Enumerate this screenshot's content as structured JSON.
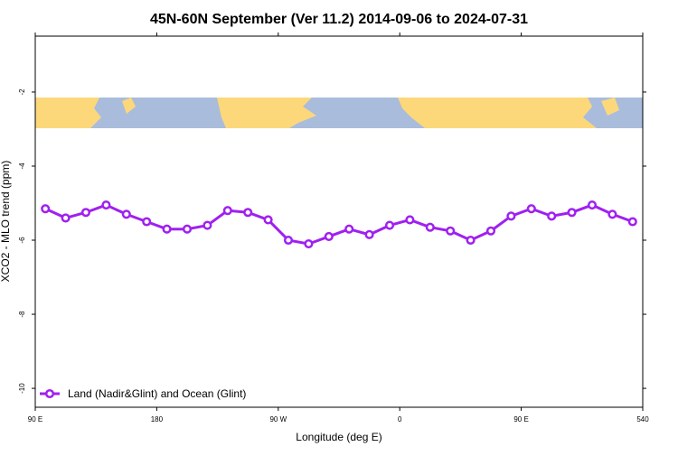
{
  "chart_data": {
    "type": "line",
    "title": "45N-60N September (Ver 11.2)   2014-09-06 to 2024-07-31",
    "x_label": "Longitude (deg E)",
    "y_label": "XCO2 - MLO trend (ppm)",
    "x": [
      97.5,
      112.5,
      127.5,
      142.5,
      157.5,
      172.5,
      187.5,
      202.5,
      217.5,
      232.5,
      247.5,
      262.5,
      277.5,
      292.5,
      307.5,
      322.5,
      337.5,
      352.5,
      367.5,
      382.5,
      397.5,
      412.5,
      427.5,
      442.5,
      457.5,
      472.5,
      487.5,
      502.5,
      517.5,
      532.5
    ],
    "series": [
      {
        "name": "Land (Nadir&Glint) and Ocean (Glint)",
        "color": "#a020f0",
        "values": [
          -5.15,
          -5.4,
          -5.25,
          -5.05,
          -5.3,
          -5.5,
          -5.7,
          -5.7,
          -5.6,
          -5.2,
          -5.25,
          -5.45,
          -6.0,
          -6.1,
          -5.9,
          -5.7,
          -5.85,
          -5.6,
          -5.45,
          -5.65,
          -5.75,
          -6.0,
          -5.75,
          -5.35,
          -5.15,
          -5.35,
          -5.25,
          -5.05,
          -5.3,
          -5.5
        ]
      }
    ],
    "xlim": [
      90,
      540
    ],
    "ylim": [
      -10.51,
      -0.49
    ],
    "xticks": [
      {
        "value": 90,
        "label": "90 E"
      },
      180,
      {
        "value": 270,
        "label": "90 W"
      },
      {
        "value": 360,
        "label": "0"
      },
      {
        "value": 450,
        "label": "90 E"
      },
      540
    ],
    "yticks": [
      -10,
      -8,
      -6,
      -4,
      -2
    ],
    "legend": "bottom-left"
  }
}
